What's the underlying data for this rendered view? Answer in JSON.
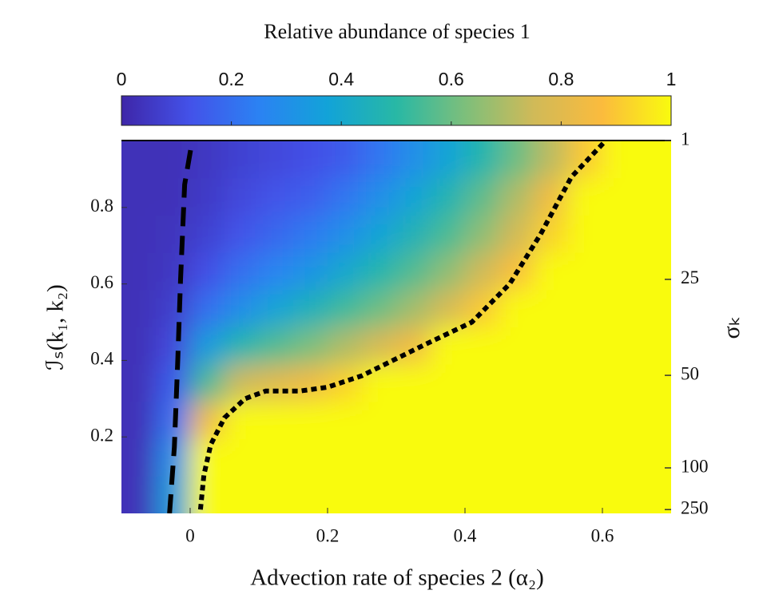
{
  "chart_data": {
    "type": "heatmap",
    "title": "Relative abundance of species 1",
    "xlabel": "Advection rate of species 2 (α₂)",
    "ylabel": "ℐₛ(k₁, k₂)",
    "y2label": "σₖ",
    "xlim": [
      -0.1,
      0.7
    ],
    "xticks": [
      0,
      0.2,
      0.4,
      0.6
    ],
    "ylim": [
      0,
      0.975
    ],
    "yticks": [
      0.2,
      0.4,
      0.6,
      0.8
    ],
    "y2ticks": [
      1,
      25,
      50,
      100,
      250
    ],
    "y2at": [
      0.975,
      0.612,
      0.361,
      0.119,
      0.01
    ],
    "clim": [
      0,
      1
    ],
    "cticks": [
      0,
      0.2,
      0.4,
      0.6,
      0.8,
      1
    ],
    "colormap": [
      "#3e26a8",
      "#4352e9",
      "#2b82f3",
      "#12a3d8",
      "#28b8a5",
      "#7dbf7b",
      "#d0ba58",
      "#fbbb3d",
      "#f9fb0e"
    ],
    "x": [
      -0.075,
      -0.025,
      0.025,
      0.075,
      0.125,
      0.175,
      0.225,
      0.275,
      0.325,
      0.375,
      0.425,
      0.475,
      0.525,
      0.575,
      0.625,
      0.675
    ],
    "y": [
      0.049,
      0.146,
      0.244,
      0.341,
      0.439,
      0.536,
      0.634,
      0.731,
      0.829,
      0.926
    ],
    "z": [
      [
        0.03,
        0.35,
        1,
        1,
        1,
        1,
        1,
        1,
        1,
        1,
        1,
        1,
        1,
        1,
        1,
        1
      ],
      [
        0.03,
        0.3,
        1,
        1,
        1,
        1,
        1,
        1,
        1,
        1,
        1,
        1,
        1,
        1,
        1,
        1
      ],
      [
        0.03,
        0.2,
        0.85,
        1,
        1,
        1,
        1,
        1,
        1,
        1,
        1,
        1,
        1,
        1,
        1,
        1
      ],
      [
        0.03,
        0.15,
        0.55,
        0.75,
        0.8,
        0.84,
        0.92,
        1,
        1,
        1,
        1,
        1,
        1,
        1,
        1,
        1
      ],
      [
        0.03,
        0.1,
        0.35,
        0.48,
        0.56,
        0.62,
        0.7,
        0.77,
        0.85,
        1,
        1,
        1,
        1,
        1,
        1,
        1
      ],
      [
        0.03,
        0.07,
        0.2,
        0.3,
        0.38,
        0.45,
        0.53,
        0.6,
        0.68,
        0.77,
        0.9,
        1,
        1,
        1,
        1,
        1
      ],
      [
        0.03,
        0.05,
        0.12,
        0.2,
        0.26,
        0.32,
        0.4,
        0.48,
        0.56,
        0.65,
        0.75,
        0.88,
        1,
        1,
        1,
        1
      ],
      [
        0.03,
        0.04,
        0.08,
        0.13,
        0.18,
        0.23,
        0.3,
        0.38,
        0.46,
        0.55,
        0.65,
        0.76,
        0.92,
        1,
        1,
        1
      ],
      [
        0.03,
        0.03,
        0.06,
        0.1,
        0.13,
        0.16,
        0.22,
        0.3,
        0.38,
        0.47,
        0.58,
        0.7,
        0.85,
        1,
        1,
        1
      ],
      [
        0.03,
        0.03,
        0.05,
        0.08,
        0.1,
        0.12,
        0.15,
        0.22,
        0.3,
        0.38,
        0.48,
        0.6,
        0.72,
        0.9,
        1,
        1
      ]
    ],
    "curves": [
      {
        "style": "dashed",
        "color": "#000000",
        "x": [
          -0.03,
          -0.023,
          -0.018,
          -0.014,
          -0.008,
          0.003
        ],
        "y": [
          0.0,
          0.173,
          0.402,
          0.61,
          0.86,
          0.975
        ]
      },
      {
        "style": "dotted",
        "color": "#000000",
        "x": [
          0.015,
          0.02,
          0.03,
          0.05,
          0.08,
          0.11,
          0.16,
          0.2,
          0.25,
          0.34,
          0.41,
          0.465,
          0.51,
          0.555,
          0.605
        ],
        "y": [
          0.01,
          0.1,
          0.18,
          0.25,
          0.3,
          0.32,
          0.32,
          0.33,
          0.36,
          0.44,
          0.5,
          0.6,
          0.73,
          0.88,
          0.975
        ]
      }
    ]
  }
}
